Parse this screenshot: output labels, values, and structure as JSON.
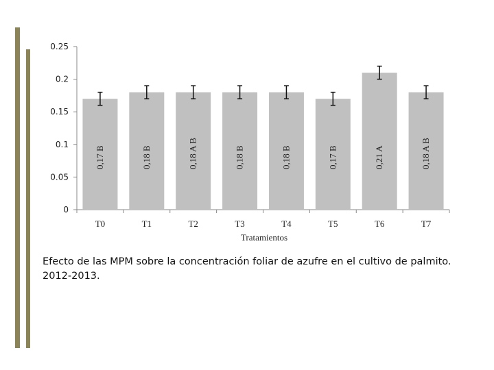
{
  "chart_data": {
    "type": "bar",
    "categories": [
      "T0",
      "T1",
      "T2",
      "T3",
      "T4",
      "T5",
      "T6",
      "T7"
    ],
    "values": [
      0.17,
      0.18,
      0.18,
      0.18,
      0.18,
      0.17,
      0.21,
      0.18
    ],
    "errors": [
      0.01,
      0.01,
      0.01,
      0.01,
      0.01,
      0.01,
      0.01,
      0.01
    ],
    "bar_labels": [
      "0,17 B",
      "0,18 B",
      "0,18 A B",
      "0,18 B",
      "0,18 B",
      "0,17 B",
      "0,21 A",
      "0,18 A B"
    ],
    "yticks": [
      "0",
      "0.05",
      "0.1",
      "0.15",
      "0.2",
      "0.25"
    ],
    "ylim": [
      0,
      0.25
    ],
    "xlabel": "Tratamientos",
    "ylabel": "",
    "grid": false,
    "bar_color": "#c0c0c0"
  },
  "caption": "Efecto de las MPM sobre la concentración foliar de azufre en el cultivo de palmito. 2012-2013.",
  "decoration_color": "#8b8458"
}
